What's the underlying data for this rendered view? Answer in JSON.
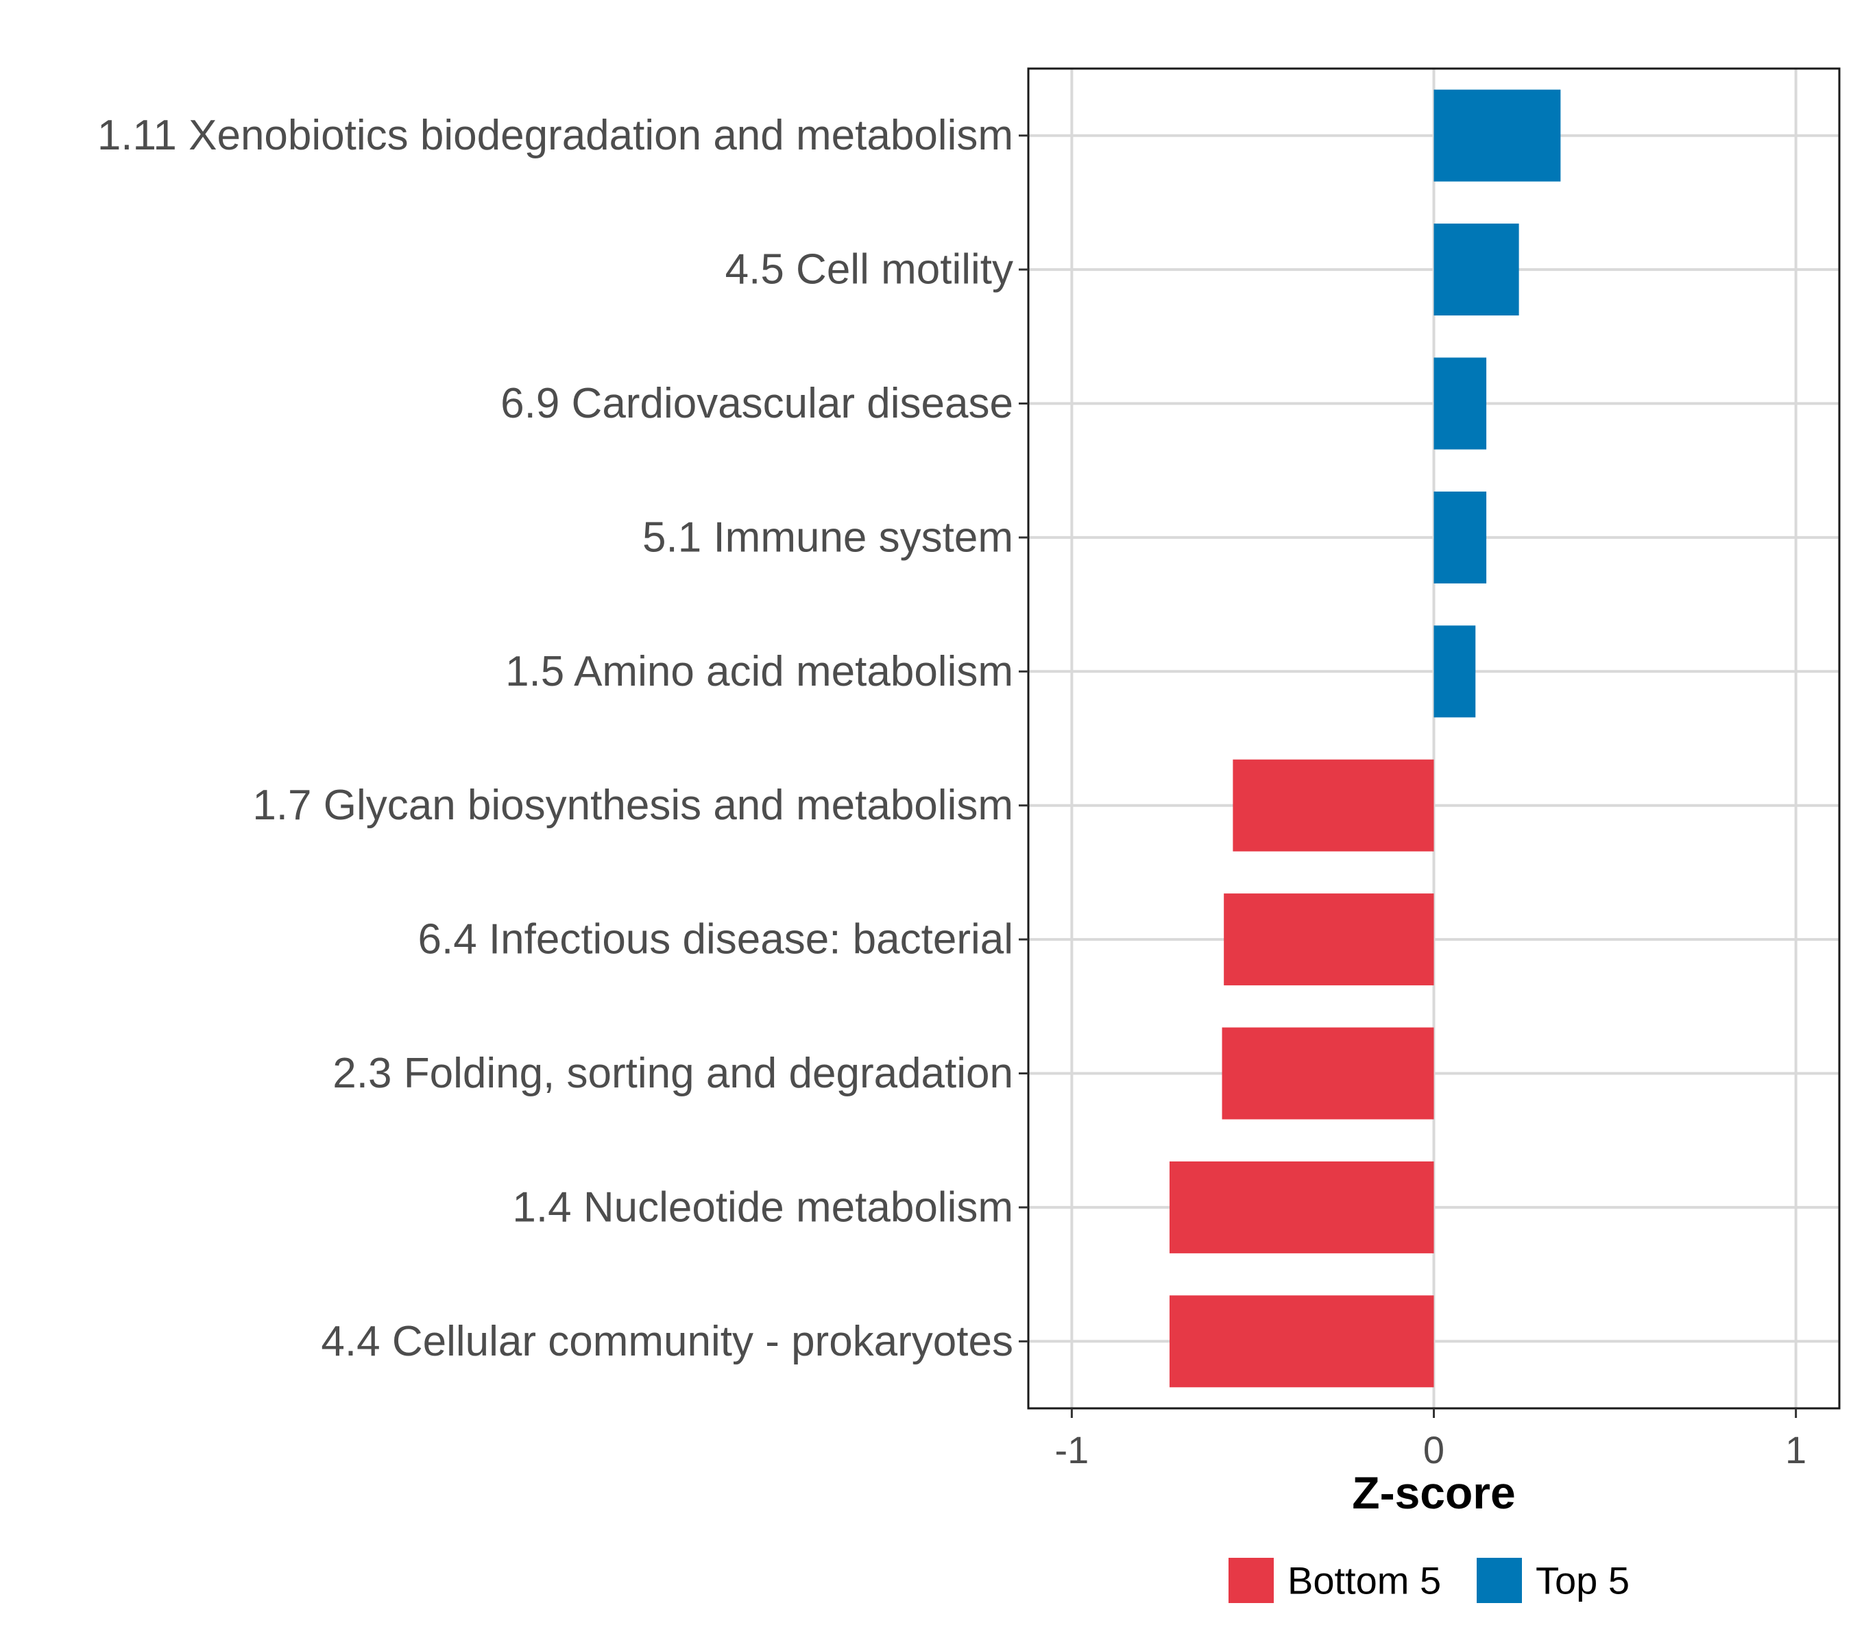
{
  "chart_data": {
    "type": "bar",
    "orientation": "horizontal",
    "title": "",
    "xlabel": "Z-score",
    "ylabel": "",
    "xlim": [
      -1.12,
      1.12
    ],
    "x_ticks": [
      -1,
      0,
      1
    ],
    "x_tick_labels": [
      "-1",
      "0",
      "1"
    ],
    "grid": true,
    "legend_position": "bottom",
    "categories": [
      "1.11 Xenobiotics biodegradation and metabolism",
      "4.5 Cell motility",
      "6.9 Cardiovascular disease",
      "5.1 Immune system",
      "1.5 Amino acid metabolism",
      "1.7 Glycan biosynthesis and metabolism",
      "6.4 Infectious disease: bacterial",
      "2.3 Folding, sorting and degradation",
      "1.4 Nucleotide metabolism",
      "4.4 Cellular community - prokaryotes"
    ],
    "values": [
      0.35,
      0.235,
      0.145,
      0.145,
      0.115,
      -0.555,
      -0.58,
      -0.585,
      -0.73,
      -0.73
    ],
    "groups": [
      "Top 5",
      "Top 5",
      "Top 5",
      "Top 5",
      "Top 5",
      "Bottom 5",
      "Bottom 5",
      "Bottom 5",
      "Bottom 5",
      "Bottom 5"
    ],
    "legend": [
      {
        "name": "Bottom 5",
        "color": "#e63946"
      },
      {
        "name": "Top 5",
        "color": "#0077b6"
      }
    ]
  }
}
